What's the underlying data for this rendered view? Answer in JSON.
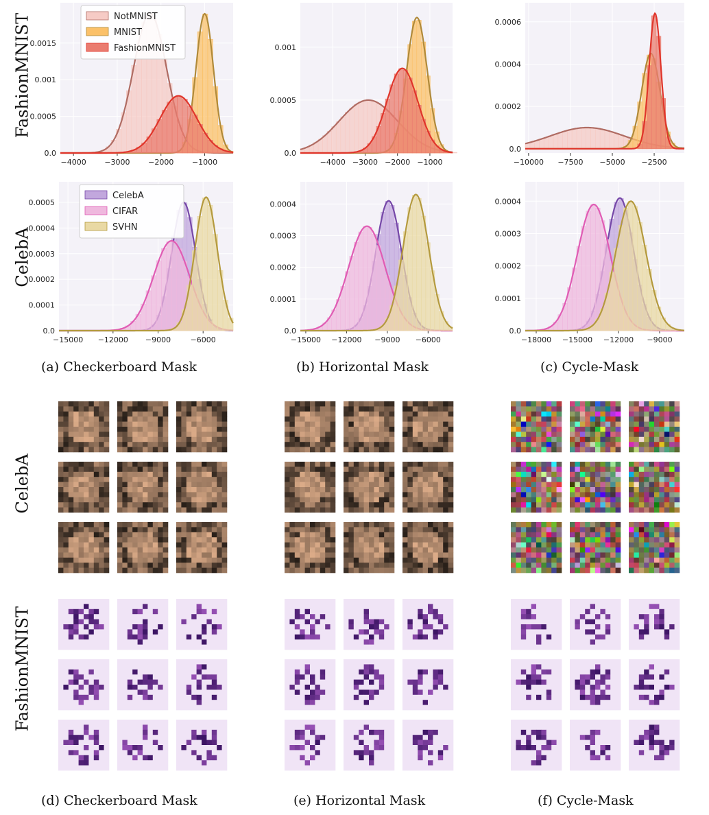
{
  "row_labels": [
    "FashionMNIST",
    "CelebA"
  ],
  "image_row_labels": [
    "CelebA",
    "FashionMNIST"
  ],
  "captions_top": [
    "(a)  Checkerboard Mask",
    "(b)  Horizontal Mask",
    "(c)  Cycle-Mask"
  ],
  "captions_bottom": [
    "(d)  Checkerboard Mask",
    "(e)  Horizontal Mask",
    "(f)  Cycle-Mask"
  ],
  "colors": {
    "NotMNIST": "#b06c63",
    "MNIST": "#b08a3a",
    "FashionMNIST": "#e0352b",
    "CelebA": "#7648a8",
    "CIFAR": "#e05cb4",
    "SVHN": "#b49a3e",
    "plot_bg": "#f4f2f8",
    "grid": "#ffffff"
  },
  "chart_data": [
    {
      "type": "histogram",
      "panel": "(a) Checkerboard Mask / FashionMNIST",
      "legend": [
        "NotMNIST",
        "MNIST",
        "FashionMNIST"
      ],
      "legend_position": "top-left",
      "xlim": [
        -4300,
        -350
      ],
      "ylim": [
        0,
        0.00205
      ],
      "xticks": [
        -4000,
        -3000,
        -2000,
        -1000
      ],
      "xtick_labels": [
        "−4000",
        "−3000",
        "−2000",
        "−1000"
      ],
      "yticks": [
        0,
        0.0005,
        0.001,
        0.0015
      ],
      "ytick_labels": [
        "0.0",
        "0.0005",
        "0.001",
        "0.0015"
      ],
      "series": [
        {
          "name": "NotMNIST",
          "mean": -2250,
          "std": 380,
          "peak": 0.0019,
          "key": "NotMNIST",
          "fill": "#f6cbc5"
        },
        {
          "name": "MNIST",
          "mean": -1000,
          "std": 200,
          "peak": 0.0019,
          "key": "MNIST",
          "fill": "#fbc169"
        },
        {
          "name": "FashionMNIST",
          "mean": -1600,
          "std": 420,
          "peak": 0.00078,
          "key": "FashionMNIST",
          "fill": "#ea7c6f"
        }
      ]
    },
    {
      "type": "histogram",
      "panel": "(b) Horizontal Mask / FashionMNIST",
      "legend": [],
      "xlim": [
        -5000,
        -300
      ],
      "ylim": [
        0,
        0.00142
      ],
      "xticks": [
        -4000,
        -3000,
        -2000,
        -1000
      ],
      "xtick_labels": [
        "−4000",
        "−3000",
        "−2000",
        "−1000"
      ],
      "yticks": [
        0,
        0.0005,
        0.001
      ],
      "ytick_labels": [
        "0.0",
        "0.0005",
        "0.001"
      ],
      "series": [
        {
          "name": "NotMNIST",
          "mean": -2900,
          "std": 900,
          "peak": 0.0005,
          "key": "NotMNIST",
          "fill": "#f6cbc5"
        },
        {
          "name": "MNIST",
          "mean": -1400,
          "std": 320,
          "peak": 0.00128,
          "key": "MNIST",
          "fill": "#fbc169"
        },
        {
          "name": "FashionMNIST",
          "mean": -1850,
          "std": 480,
          "peak": 0.0008,
          "key": "FashionMNIST",
          "fill": "#ea7c6f"
        }
      ]
    },
    {
      "type": "histogram",
      "panel": "(c) Cycle-Mask / FashionMNIST",
      "legend": [],
      "xlim": [
        -10200,
        -700
      ],
      "ylim": [
        -2e-05,
        0.00069
      ],
      "xticks": [
        -10000,
        -7500,
        -5000,
        -2500
      ],
      "xtick_labels": [
        "−10000",
        "−7500",
        "−5000",
        "−2500"
      ],
      "yticks": [
        0,
        0.0002,
        0.0004,
        0.0006
      ],
      "ytick_labels": [
        "0.0",
        "0.0002",
        "0.0004",
        "0.0006"
      ],
      "series": [
        {
          "name": "NotMNIST",
          "mean": -6500,
          "std": 2200,
          "peak": 0.0001,
          "key": "NotMNIST",
          "fill": "#f6cbc5"
        },
        {
          "name": "MNIST",
          "mean": -2700,
          "std": 550,
          "peak": 0.00045,
          "key": "MNIST",
          "fill": "#fbc169"
        },
        {
          "name": "FashionMNIST",
          "mean": -2450,
          "std": 350,
          "peak": 0.00064,
          "key": "FashionMNIST",
          "fill": "#ea7c6f"
        }
      ]
    },
    {
      "type": "histogram",
      "panel": "(a) Checkerboard Mask / CelebA",
      "legend": [
        "CelebA",
        "CIFAR",
        "SVHN"
      ],
      "legend_position": "top-left",
      "xlim": [
        -15600,
        -4000
      ],
      "ylim": [
        0,
        0.00058
      ],
      "xticks": [
        -15000,
        -12000,
        -9000,
        -6000
      ],
      "xtick_labels": [
        "−15000",
        "−12000",
        "−9000",
        "−6000"
      ],
      "yticks": [
        0,
        0.0001,
        0.0002,
        0.0003,
        0.0004,
        0.0005
      ],
      "ytick_labels": [
        "0.0",
        "0.0001",
        "0.0002",
        "0.0003",
        "0.0004",
        "0.0005"
      ],
      "series": [
        {
          "name": "CelebA",
          "mean": -7300,
          "std": 800,
          "peak": 0.0005,
          "key": "CelebA",
          "fill": "#c2a7dd"
        },
        {
          "name": "CIFAR",
          "mean": -8100,
          "std": 1200,
          "peak": 0.00035,
          "key": "CIFAR",
          "fill": "#efb8de"
        },
        {
          "name": "SVHN",
          "mean": -5800,
          "std": 750,
          "peak": 0.00052,
          "key": "SVHN",
          "fill": "#e9d9a4"
        }
      ]
    },
    {
      "type": "histogram",
      "panel": "(b) Horizontal Mask / CelebA",
      "legend": [],
      "xlim": [
        -15400,
        -4200
      ],
      "ylim": [
        0,
        0.00047
      ],
      "xticks": [
        -15000,
        -12000,
        -9000,
        -6000
      ],
      "xtick_labels": [
        "−15000",
        "−12000",
        "−9000",
        "−6000"
      ],
      "yticks": [
        0,
        0.0001,
        0.0002,
        0.0003,
        0.0004
      ],
      "ytick_labels": [
        "0.0",
        "0.0001",
        "0.0002",
        "0.0003",
        "0.0004"
      ],
      "series": [
        {
          "name": "CelebA",
          "mean": -8900,
          "std": 950,
          "peak": 0.00041,
          "key": "CelebA",
          "fill": "#c2a7dd"
        },
        {
          "name": "CIFAR",
          "mean": -10500,
          "std": 1350,
          "peak": 0.00033,
          "key": "CIFAR",
          "fill": "#efb8de"
        },
        {
          "name": "SVHN",
          "mean": -6900,
          "std": 950,
          "peak": 0.00043,
          "key": "SVHN",
          "fill": "#e9d9a4"
        }
      ]
    },
    {
      "type": "histogram",
      "panel": "(c) Cycle-Mask / CelebA",
      "legend": [],
      "xlim": [
        -18800,
        -7200
      ],
      "ylim": [
        0,
        0.00046
      ],
      "xticks": [
        -18000,
        -15000,
        -12000,
        -9000
      ],
      "xtick_labels": [
        "−18000",
        "−15000",
        "−12000",
        "−9000"
      ],
      "yticks": [
        0,
        0.0001,
        0.0002,
        0.0003,
        0.0004
      ],
      "ytick_labels": [
        "0.0",
        "0.0001",
        "0.0002",
        "0.0003",
        "0.0004"
      ],
      "series": [
        {
          "name": "CelebA",
          "mean": -11900,
          "std": 1000,
          "peak": 0.00041,
          "key": "CelebA",
          "fill": "#c2a7dd"
        },
        {
          "name": "CIFAR",
          "mean": -13800,
          "std": 1200,
          "peak": 0.00039,
          "key": "CIFAR",
          "fill": "#efb8de"
        },
        {
          "name": "SVHN",
          "mean": -11100,
          "std": 1100,
          "peak": 0.0004,
          "key": "SVHN",
          "fill": "#e9d9a4"
        }
      ]
    }
  ]
}
